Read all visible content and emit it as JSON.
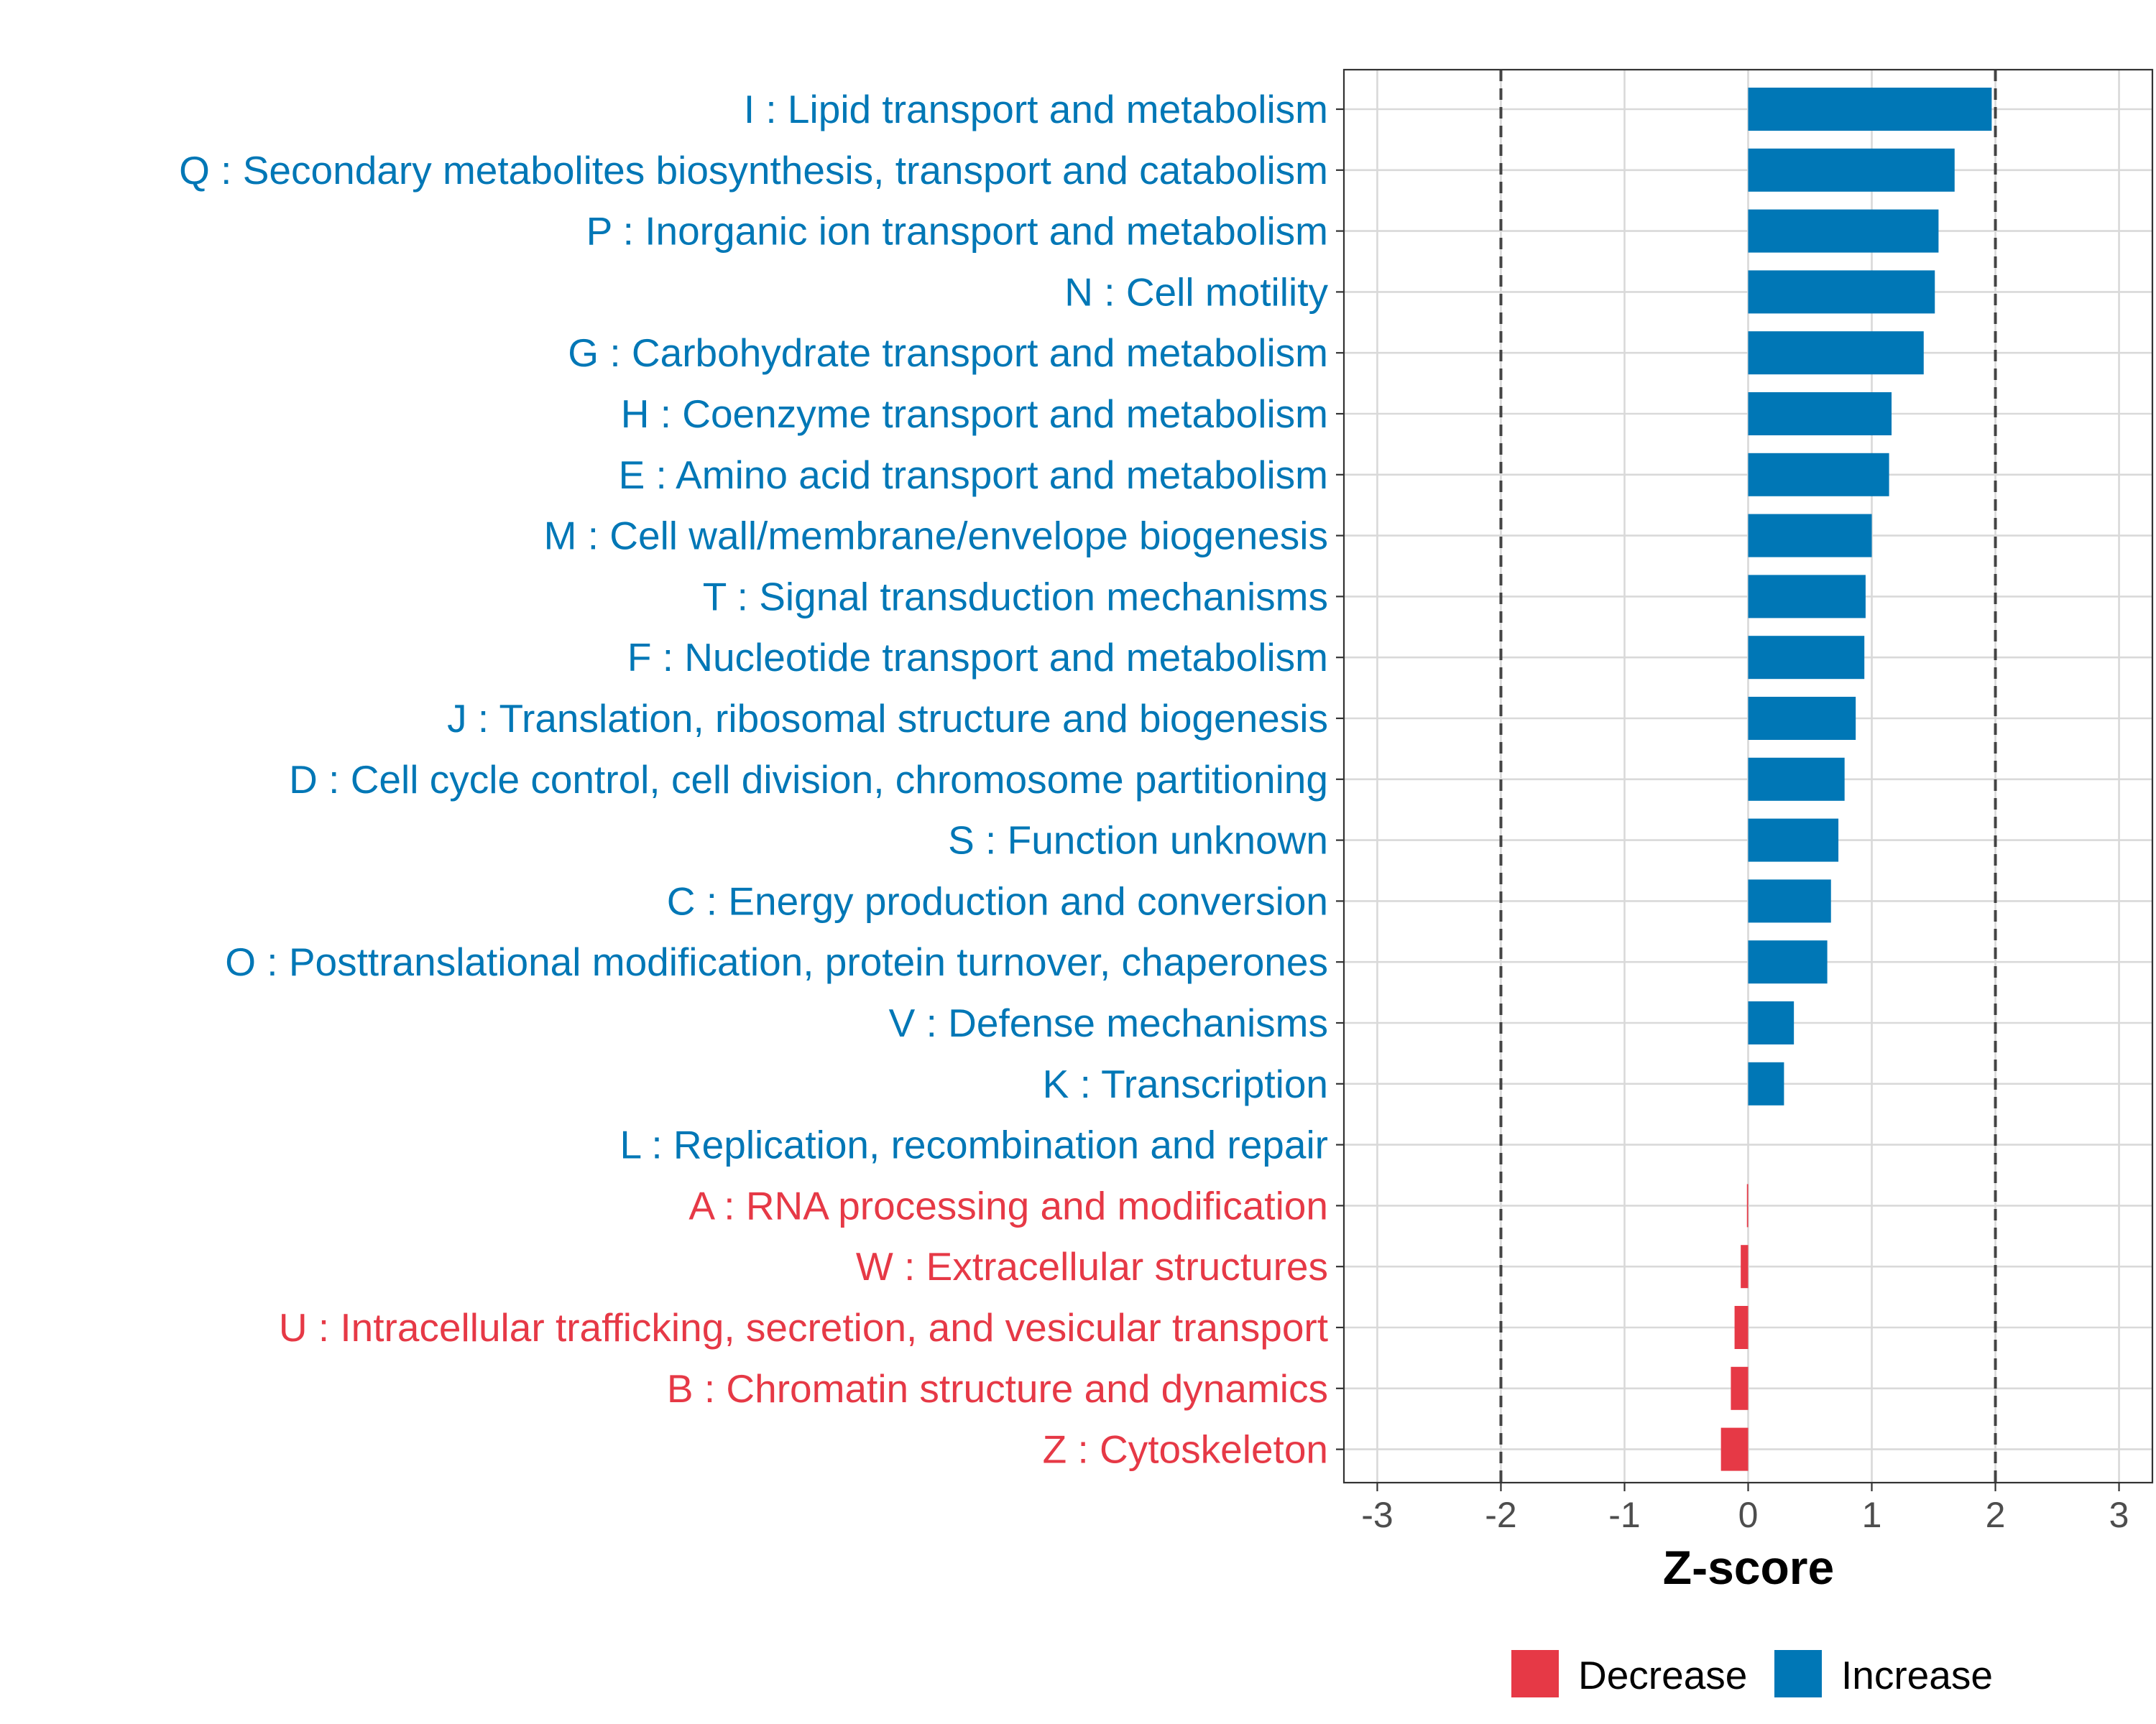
{
  "chart_data": {
    "type": "bar",
    "orientation": "horizontal",
    "categories": [
      "I : Lipid transport and metabolism",
      "Q : Secondary metabolites biosynthesis, transport and catabolism",
      "P : Inorganic ion transport and metabolism",
      "N : Cell motility",
      "G : Carbohydrate transport and metabolism",
      "H : Coenzyme transport and metabolism",
      "E : Amino acid transport and metabolism",
      "M : Cell wall/membrane/envelope biogenesis",
      "T : Signal transduction mechanisms",
      "F : Nucleotide transport and metabolism",
      "J : Translation, ribosomal structure and biogenesis",
      "D : Cell cycle control, cell division, chromosome partitioning",
      "S : Function unknown",
      "C : Energy production and conversion",
      "O : Posttranslational modification, protein turnover, chaperones",
      "V : Defense mechanisms",
      "K : Transcription",
      "L : Replication, recombination and repair",
      "A : RNA processing and modification",
      "W : Extracellular structures",
      "U : Intracellular trafficking, secretion, and vesicular transport",
      "B : Chromatin structure and dynamics",
      "Z : Cytoskeleton"
    ],
    "values": [
      1.97,
      1.67,
      1.54,
      1.51,
      1.42,
      1.16,
      1.14,
      1.0,
      0.95,
      0.94,
      0.87,
      0.78,
      0.73,
      0.67,
      0.64,
      0.37,
      0.29,
      0.0,
      -0.01,
      -0.06,
      -0.11,
      -0.14,
      -0.22
    ],
    "groups": [
      "Increase",
      "Increase",
      "Increase",
      "Increase",
      "Increase",
      "Increase",
      "Increase",
      "Increase",
      "Increase",
      "Increase",
      "Increase",
      "Increase",
      "Increase",
      "Increase",
      "Increase",
      "Increase",
      "Increase",
      "Increase",
      "Decrease",
      "Decrease",
      "Decrease",
      "Decrease",
      "Decrease"
    ],
    "xlabel": "Z-score",
    "ylabel": "",
    "xlim": [
      -3.27,
      3.27
    ],
    "xticks": [
      -3,
      -2,
      -1,
      0,
      1,
      2,
      3
    ],
    "xtick_labels": [
      "-3",
      "-2",
      "-1",
      "0",
      "1",
      "2",
      "3"
    ],
    "reference_lines": [
      -2,
      2
    ],
    "grid": true,
    "legend": {
      "position": "bottom",
      "entries": [
        {
          "name": "Decrease",
          "color": "#E63946"
        },
        {
          "name": "Increase",
          "color": "#0077B6"
        }
      ]
    },
    "colors": {
      "Decrease": "#E63946",
      "Increase": "#0077B6"
    }
  }
}
